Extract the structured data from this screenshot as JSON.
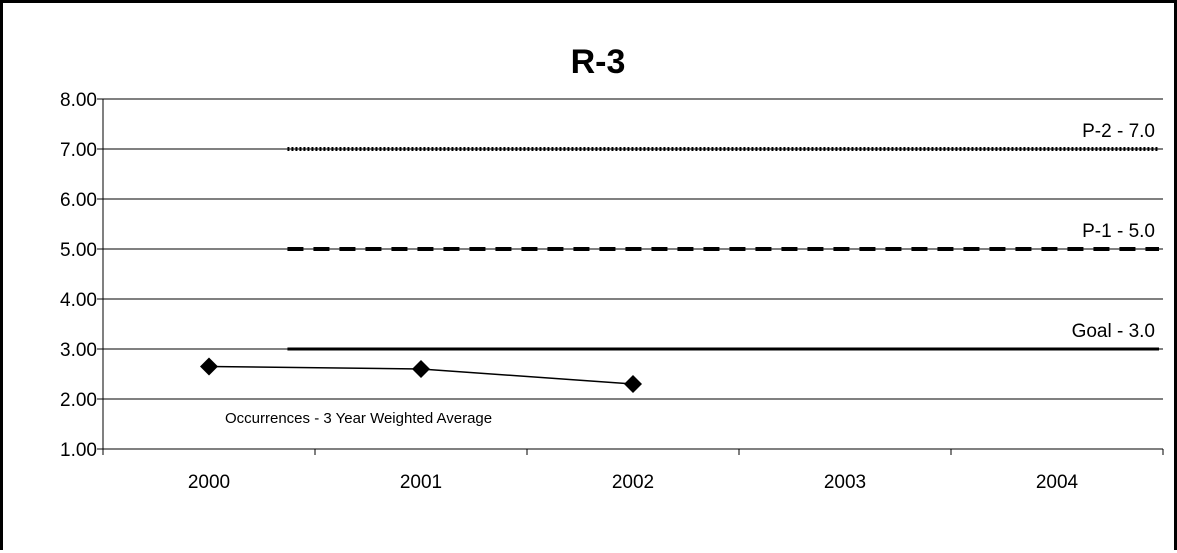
{
  "chart_data": {
    "type": "line",
    "title": "R-3",
    "xlabel": "",
    "ylabel": "",
    "categories": [
      "2000",
      "2001",
      "2002",
      "2003",
      "2004"
    ],
    "ylim": [
      1.0,
      8.0
    ],
    "yticks": [
      "1.00",
      "2.00",
      "3.00",
      "4.00",
      "5.00",
      "6.00",
      "7.00",
      "8.00"
    ],
    "grid": true,
    "series": [
      {
        "name": "Occurrences - 3 Year Weighted Average",
        "values": [
          2.65,
          2.6,
          2.3,
          null,
          null
        ],
        "marker": "diamond",
        "color": "#000000"
      }
    ],
    "reference_lines": [
      {
        "label": "P-2 - 7.0",
        "value": 7.0,
        "style": "dotted"
      },
      {
        "label": "P-1 - 5.0",
        "value": 5.0,
        "style": "dashed"
      },
      {
        "label": "Goal - 3.0",
        "value": 3.0,
        "style": "solid"
      }
    ],
    "annotation": "Occurrences - 3 Year Weighted Average"
  }
}
